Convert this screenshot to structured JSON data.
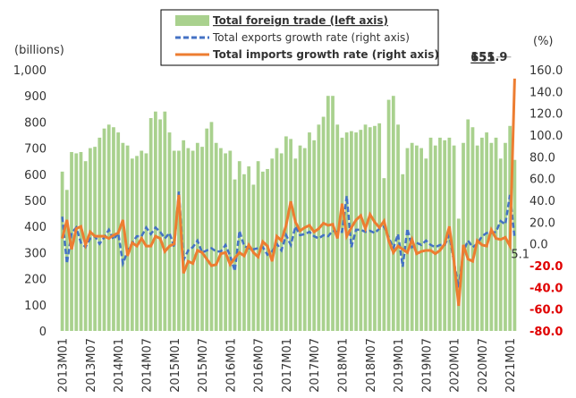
{
  "chart_data": {
    "type": "bar",
    "left_axis_label": "(billions)",
    "right_axis_label": "(%)",
    "categories": [
      "2013M01",
      null,
      null,
      null,
      null,
      null,
      "2013M07",
      null,
      null,
      null,
      null,
      null,
      "2014M01",
      null,
      null,
      null,
      null,
      null,
      "2014M07",
      null,
      null,
      null,
      null,
      null,
      "2015M01",
      null,
      null,
      null,
      null,
      null,
      "2015M07",
      null,
      null,
      null,
      null,
      null,
      "2016M01",
      null,
      null,
      null,
      null,
      null,
      "2016M07",
      null,
      null,
      null,
      null,
      null,
      "2017M01",
      null,
      null,
      null,
      null,
      null,
      "2017M07",
      null,
      null,
      null,
      null,
      null,
      "2018M01",
      null,
      null,
      null,
      null,
      null,
      "2018M07",
      null,
      null,
      null,
      null,
      null,
      "2019M01",
      null,
      null,
      null,
      null,
      null,
      "2019M07",
      null,
      null,
      null,
      null,
      null,
      "2020M01",
      null,
      null,
      null,
      null,
      null,
      "2020M07",
      null,
      null,
      null,
      null,
      null,
      "2021M01",
      null
    ],
    "series": [
      {
        "name": "Total foreign trade (left axis)",
        "type": "bar",
        "color": "#a9d18e",
        "values": [
          610,
          540,
          685,
          680,
          685,
          650,
          700,
          705,
          740,
          775,
          790,
          780,
          760,
          720,
          710,
          660,
          670,
          690,
          680,
          815,
          840,
          810,
          840,
          760,
          690,
          690,
          730,
          700,
          690,
          720,
          705,
          775,
          800,
          720,
          700,
          680,
          690,
          580,
          650,
          600,
          630,
          560,
          650,
          610,
          620,
          660,
          700,
          680,
          745,
          735,
          660,
          710,
          700,
          760,
          730,
          790,
          820,
          900,
          900,
          790,
          740,
          760,
          765,
          760,
          770,
          790,
          780,
          785,
          795,
          585,
          885,
          900,
          790,
          600,
          700,
          720,
          710,
          700,
          660,
          740,
          710,
          740,
          730,
          740,
          710,
          430,
          720,
          810,
          780,
          710,
          740,
          760,
          720,
          740,
          660,
          720,
          785,
          655
        ]
      },
      {
        "name": "Total exports growth rate (right axis)",
        "type": "line",
        "dash": true,
        "axis": "y2",
        "color": "#4472c4",
        "values": [
          25,
          -18,
          10,
          15,
          1,
          -3,
          5,
          7,
          0,
          6,
          13,
          4,
          10,
          -18,
          -7,
          1,
          7,
          7,
          15,
          9,
          15,
          11,
          5,
          10,
          -3,
          48,
          -15,
          -6,
          -3,
          3,
          -8,
          -6,
          -4,
          -7,
          -7,
          -1,
          -11,
          -25,
          12,
          -2,
          -4,
          -5,
          -4,
          -3,
          -10,
          -7,
          0,
          -6,
          8,
          -1,
          16,
          8,
          9,
          11,
          7,
          5,
          8,
          7,
          12,
          11,
          11,
          44,
          -3,
          13,
          13,
          11,
          12,
          10,
          14,
          16,
          6,
          -4,
          9,
          -21,
          14,
          -3,
          1,
          -1,
          3,
          -1,
          -3,
          -1,
          -1,
          8,
          -17,
          -40,
          -7,
          3,
          -3,
          0,
          7,
          10,
          10,
          11,
          21,
          18,
          45,
          5.1
        ]
      },
      {
        "name": "Total imports growth rate (right axis)",
        "type": "line",
        "dash": false,
        "axis": "y2",
        "color": "#ed7d31",
        "values": [
          5,
          22,
          -5,
          14,
          16,
          -1,
          11,
          7,
          7,
          7,
          5,
          8,
          10,
          22,
          -11,
          1,
          -2,
          5,
          -2,
          -2,
          7,
          5,
          -7,
          -2,
          0,
          45,
          -27,
          -16,
          -18,
          -6,
          -8,
          -14,
          -20,
          -19,
          -9,
          -8,
          -19,
          -13,
          -8,
          -11,
          -1,
          -8,
          -12,
          2,
          -2,
          -16,
          7,
          3,
          17,
          39,
          20,
          12,
          15,
          17,
          11,
          14,
          19,
          17,
          18,
          5,
          37,
          7,
          15,
          22,
          26,
          14,
          27,
          20,
          15,
          21,
          3,
          -8,
          -2,
          -5,
          -8,
          4,
          -9,
          -7,
          -6,
          -6,
          -9,
          -6,
          0,
          16,
          -16,
          -57,
          -1,
          -14,
          -16,
          3,
          -1,
          -2,
          13,
          5,
          4,
          6,
          -2,
          151.9
        ]
      }
    ],
    "ylim": [
      0,
      1000
    ],
    "yticks": [
      0,
      100,
      200,
      300,
      400,
      500,
      600,
      700,
      800,
      900,
      {
        "value": 1000,
        "label": "1,000"
      }
    ],
    "y2lim": [
      -80,
      160
    ],
    "y2ticks": [
      {
        "value": -80,
        "label": "-80.0"
      },
      {
        "value": -60,
        "label": "-60.0"
      },
      {
        "value": -40,
        "label": "-40.0"
      },
      {
        "value": -20,
        "label": "-20.0"
      },
      {
        "value": 0,
        "label": "0.0"
      },
      {
        "value": 20,
        "label": "20.0"
      },
      {
        "value": 40,
        "label": "40.0"
      },
      {
        "value": 60,
        "label": "60.0"
      },
      {
        "value": 80,
        "label": "80.0"
      },
      {
        "value": 100,
        "label": "100.0"
      },
      {
        "value": 120,
        "label": "120.0"
      },
      {
        "value": 140,
        "label": "140.0"
      },
      {
        "value": 160,
        "label": "160.0"
      }
    ],
    "grid": false,
    "legend": "top"
  }
}
